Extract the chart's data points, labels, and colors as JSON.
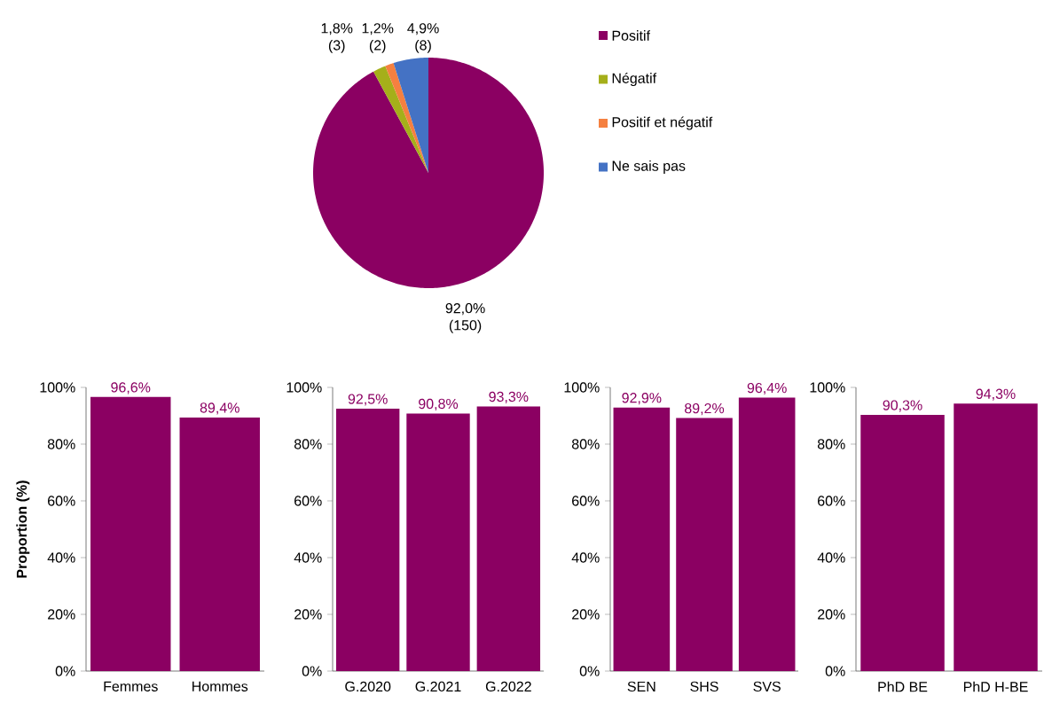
{
  "chart_data": [
    {
      "type": "pie",
      "categories": [
        "Positif",
        "Négatif",
        "Positif et négatif",
        "Ne sais pas"
      ],
      "values": [
        92.0,
        1.8,
        1.2,
        4.9
      ],
      "colors": [
        "#8b0062",
        "#a5af1a",
        "#f58040",
        "#4472c4"
      ],
      "value_labels": [
        "92,0% (150)",
        "1,8% (3)",
        "1,2% (2)",
        "4,9% (8)"
      ],
      "legend": "right"
    },
    {
      "type": "bar",
      "ylabel": "Proportion (%)",
      "categories": [
        "Femmes",
        "Hommes"
      ],
      "values": [
        96.6,
        89.4
      ],
      "color": "#8b0062",
      "value_labels": [
        "96,6%",
        "89,4%"
      ],
      "ylim": [
        0,
        100
      ],
      "yticks": [
        {
          "value": 0,
          "label": "0%"
        },
        {
          "value": 20,
          "label": "20%"
        },
        {
          "value": 40,
          "label": "40%"
        },
        {
          "value": 60,
          "label": "60%"
        },
        {
          "value": 80,
          "label": "80%"
        },
        {
          "value": 100,
          "label": "100%"
        }
      ]
    },
    {
      "type": "bar",
      "categories": [
        "G.2020",
        "G.2021",
        "G.2022"
      ],
      "values": [
        92.5,
        90.8,
        93.3
      ],
      "color": "#8b0062",
      "value_labels": [
        "92,5%",
        "90,8%",
        "93,3%"
      ],
      "ylim": [
        0,
        100
      ],
      "yticks": [
        {
          "value": 0,
          "label": "0%"
        },
        {
          "value": 20,
          "label": "20%"
        },
        {
          "value": 40,
          "label": "40%"
        },
        {
          "value": 60,
          "label": "60%"
        },
        {
          "value": 80,
          "label": "80%"
        },
        {
          "value": 100,
          "label": "100%"
        }
      ]
    },
    {
      "type": "bar",
      "categories": [
        "SEN",
        "SHS",
        "SVS"
      ],
      "values": [
        92.9,
        89.2,
        96.4
      ],
      "color": "#8b0062",
      "value_labels": [
        "92,9%",
        "89,2%",
        "96,4%"
      ],
      "ylim": [
        0,
        100
      ],
      "yticks": [
        {
          "value": 0,
          "label": "0%"
        },
        {
          "value": 20,
          "label": "20%"
        },
        {
          "value": 40,
          "label": "40%"
        },
        {
          "value": 60,
          "label": "60%"
        },
        {
          "value": 80,
          "label": "80%"
        },
        {
          "value": 100,
          "label": "100%"
        }
      ]
    },
    {
      "type": "bar",
      "categories": [
        "PhD BE",
        "PhD H-BE"
      ],
      "values": [
        90.3,
        94.3
      ],
      "color": "#8b0062",
      "value_labels": [
        "90,3%",
        "94,3%"
      ],
      "ylim": [
        0,
        100
      ],
      "yticks": [
        {
          "value": 0,
          "label": "0%"
        },
        {
          "value": 20,
          "label": "20%"
        },
        {
          "value": 40,
          "label": "40%"
        },
        {
          "value": 60,
          "label": "60%"
        },
        {
          "value": 80,
          "label": "80%"
        },
        {
          "value": 100,
          "label": "100%"
        }
      ]
    }
  ]
}
